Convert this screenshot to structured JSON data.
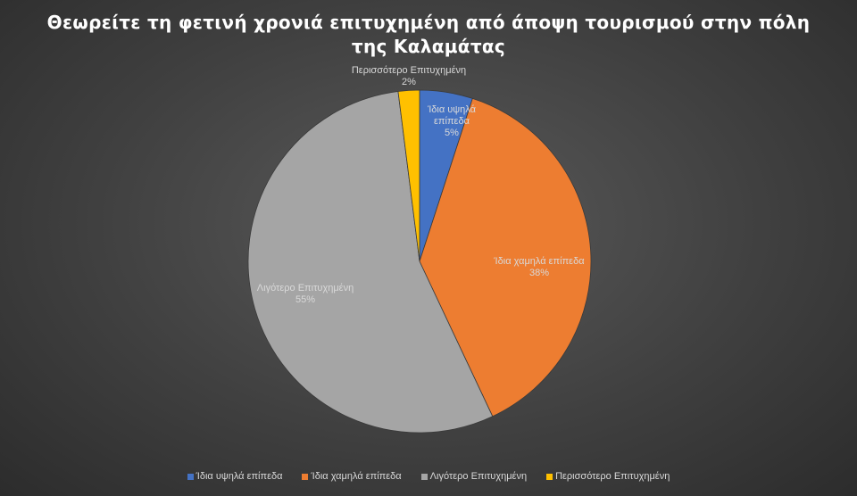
{
  "chart_data": {
    "type": "pie",
    "title": "Θεωρείτε  τη φετινή χρονιά επιτυχημένη από άποψη τουρισμού στην πόλη της Καλαμάτας",
    "slices": [
      {
        "name": "Ίδια υψηλά επίπεδα",
        "value": 5,
        "value_label": "5%",
        "label_lines": [
          "Ίδια υψηλά",
          "επίπεδα"
        ],
        "color": "#4472c4"
      },
      {
        "name": "Ίδια χαμηλά επίπεδα",
        "value": 38,
        "value_label": "38%",
        "label_lines": [
          "Ίδια χαμηλά επίπεδα"
        ],
        "color": "#ed7d31"
      },
      {
        "name": "Λιγότερο Επιτυχημένη",
        "value": 55,
        "value_label": "55%",
        "label_lines": [
          "Λιγότερο Επιτυχημένη"
        ],
        "color": "#a5a5a5"
      },
      {
        "name": "Περισσότερο Επιτυχημένη",
        "value": 2,
        "value_label": "2%",
        "label_lines": [
          "Περισσότερο Επιτυχημένη"
        ],
        "color": "#ffc000"
      }
    ],
    "legend_position": "bottom",
    "start_angle": "12 o'clock, clockwise"
  },
  "label_color": "#d9d9d9",
  "background_color": "#404040"
}
